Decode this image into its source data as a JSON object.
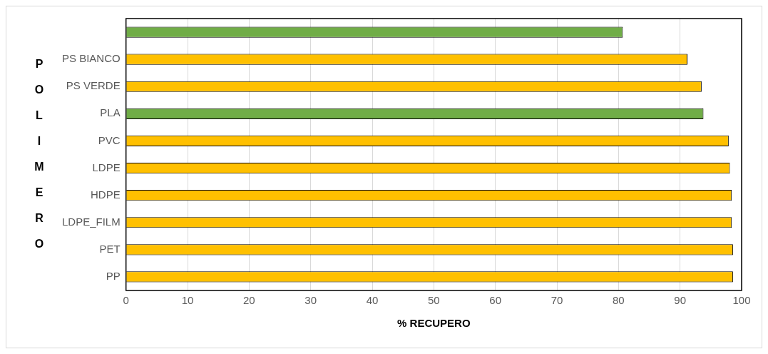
{
  "chart_data": {
    "type": "bar",
    "orientation": "horizontal",
    "xlabel": "% RECUPERO",
    "ylabel": "POLIMERO",
    "categories": [
      null,
      "PS BIANCO",
      "PS VERDE",
      "PLA",
      "PVC",
      "LDPE",
      "HDPE",
      "LDPE_FILM",
      "PET",
      "PP"
    ],
    "values": [
      80.7,
      91.2,
      93.5,
      93.8,
      97.9,
      98.1,
      98.4,
      98.4,
      98.6,
      98.6
    ],
    "colors": [
      "#70ad47",
      "#ffc000",
      "#ffc000",
      "#70ad47",
      "#ffc000",
      "#ffc000",
      "#ffc000",
      "#ffc000",
      "#ffc000",
      "#ffc000"
    ],
    "xlim": [
      0,
      100
    ],
    "xticks": [
      0,
      10,
      20,
      30,
      40,
      50,
      60,
      70,
      80,
      90,
      100
    ],
    "grid": "x",
    "legend": false
  }
}
